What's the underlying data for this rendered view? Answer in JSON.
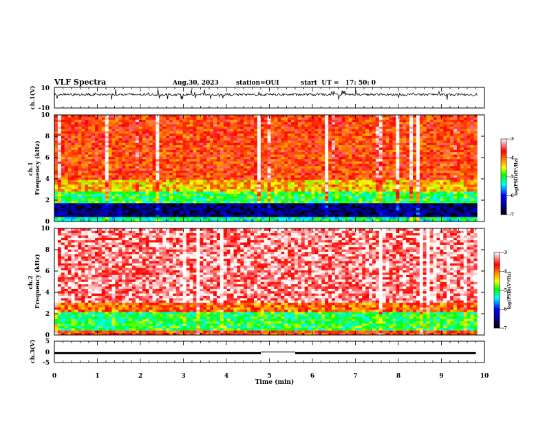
{
  "header": {
    "title": "VLF Spectra",
    "date": "Aug.30, 2023",
    "station": "station=OUI",
    "start": "start  UT =   17: 50: 0"
  },
  "colors": {
    "spectrum": [
      "#000080",
      "#0000ff",
      "#00c8ff",
      "#00ff64",
      "#c8ff00",
      "#ffff00",
      "#ff8c00",
      "#ff0000",
      "#ffffff"
    ],
    "trace": "#000000"
  },
  "chart_data": [
    {
      "type": "line",
      "panel": "ch1-waveform",
      "ylabel": "ch.1(V)",
      "ylim": [
        -10,
        10
      ],
      "yticks": [
        "10",
        "-10"
      ],
      "description_values": {
        "baseline": 3,
        "noise_range": [
          0,
          5
        ],
        "spike_range": [
          -2,
          8
        ]
      }
    },
    {
      "type": "heatmap",
      "panel": "ch1-spectrogram",
      "ylabel": "ch.1\nFrequency (kHz)",
      "ylim": [
        0,
        10
      ],
      "yticks": [
        "0",
        "2",
        "4",
        "6",
        "8",
        "10"
      ],
      "bands": [
        {
          "f": [
            0,
            0.4
          ],
          "log_psd": -5.2
        },
        {
          "f": [
            0.4,
            1.8
          ],
          "log_psd": -6.6
        },
        {
          "f": [
            1.8,
            2.8
          ],
          "log_psd": -5.0
        },
        {
          "f": [
            2.8,
            4.0
          ],
          "log_psd": -4.3
        },
        {
          "f": [
            4.0,
            10
          ],
          "log_psd": -3.8
        }
      ],
      "colorbar": {
        "label": "log(PSD)(V²/Hz)",
        "range": [
          -7,
          -3
        ],
        "ticks": [
          "-3",
          "-4",
          "-5",
          "-6",
          "-7"
        ]
      }
    },
    {
      "type": "heatmap",
      "panel": "ch2-spectrogram",
      "ylabel": "ch.2\nFrequency (kHz)",
      "ylim": [
        0,
        10
      ],
      "yticks": [
        "0",
        "2",
        "4",
        "6",
        "8",
        "10"
      ],
      "bands": [
        {
          "f": [
            0,
            0.5
          ],
          "log_psd": -3.8
        },
        {
          "f": [
            0.5,
            2.2
          ],
          "log_psd": -5.0
        },
        {
          "f": [
            2.2,
            3.0
          ],
          "log_psd": -4.0
        },
        {
          "f": [
            3.0,
            10
          ],
          "log_psd": -3.3
        }
      ],
      "colorbar": {
        "label": "log(PSD)(V²/Hz)",
        "range": [
          -7,
          -3
        ],
        "ticks": [
          "-3",
          "-4",
          "-5",
          "-6",
          "-7"
        ]
      }
    },
    {
      "type": "line",
      "panel": "ch3-waveform",
      "ylabel": "ch.3(V)",
      "ylim": [
        -5,
        5
      ],
      "yticks": [
        "5",
        "0",
        "-5"
      ],
      "segments": [
        {
          "t": [
            0.0,
            4.8
          ],
          "v": -0.6
        },
        {
          "t": [
            4.8,
            5.6
          ],
          "v": -0.1
        },
        {
          "t": [
            5.6,
            9.8
          ],
          "v": -0.6
        }
      ]
    }
  ],
  "xaxis": {
    "label": "Time (min)",
    "range": [
      0,
      10
    ],
    "ticks": [
      "0",
      "1",
      "2",
      "3",
      "4",
      "5",
      "6",
      "7",
      "8",
      "9",
      "10"
    ],
    "data_end": 9.83
  }
}
